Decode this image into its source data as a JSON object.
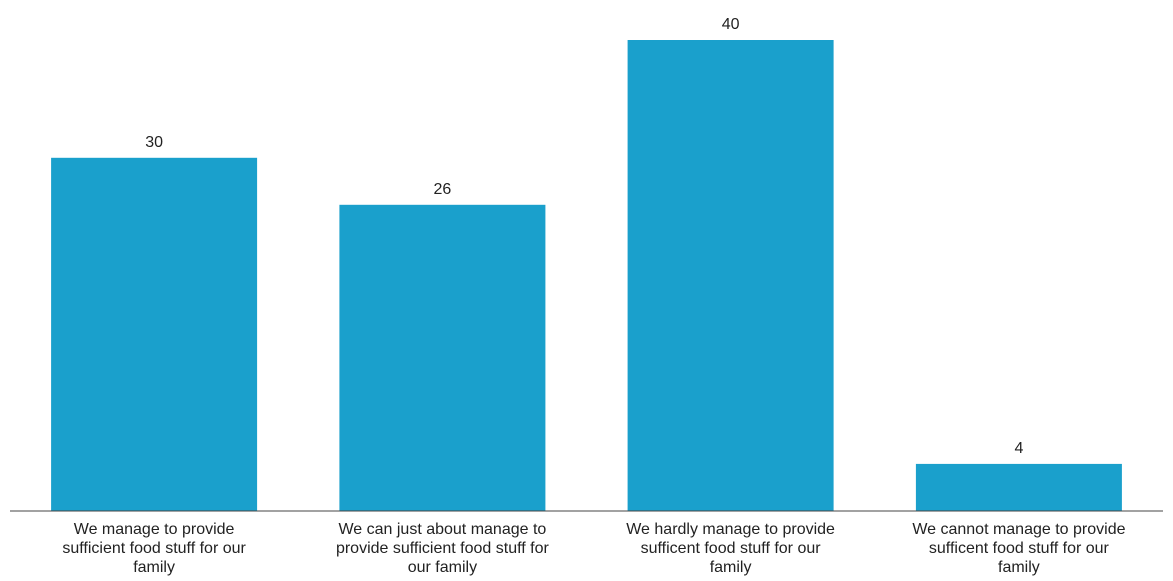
{
  "chart_data": {
    "type": "bar",
    "categories": [
      "We manage to provide sufficient food stuff for our family",
      "We can just about manage to provide sufficient food stuff for our family",
      "We hardly manage to provide sufficent food stuff for our family",
      "We cannot manage to provide sufficent food stuff for our family"
    ],
    "category_lines": [
      [
        "We manage to provide",
        "sufficient food stuff for our",
        "family"
      ],
      [
        "We can just about manage to",
        "provide sufficient food stuff for",
        "our family"
      ],
      [
        "We hardly manage to provide",
        "sufficent food stuff for our",
        "family"
      ],
      [
        "We cannot manage to provide",
        "sufficent food stuff for our",
        "family"
      ]
    ],
    "values": [
      30,
      26,
      40,
      4
    ],
    "data_labels": [
      "30",
      "26",
      "40",
      "4"
    ],
    "title": "",
    "xlabel": "",
    "ylabel": "",
    "ylim": [
      0,
      40
    ],
    "grid": false,
    "legend": "none",
    "colors": {
      "bar": "#1aa0cc",
      "baseline": "#444444",
      "text": "#222222"
    }
  }
}
